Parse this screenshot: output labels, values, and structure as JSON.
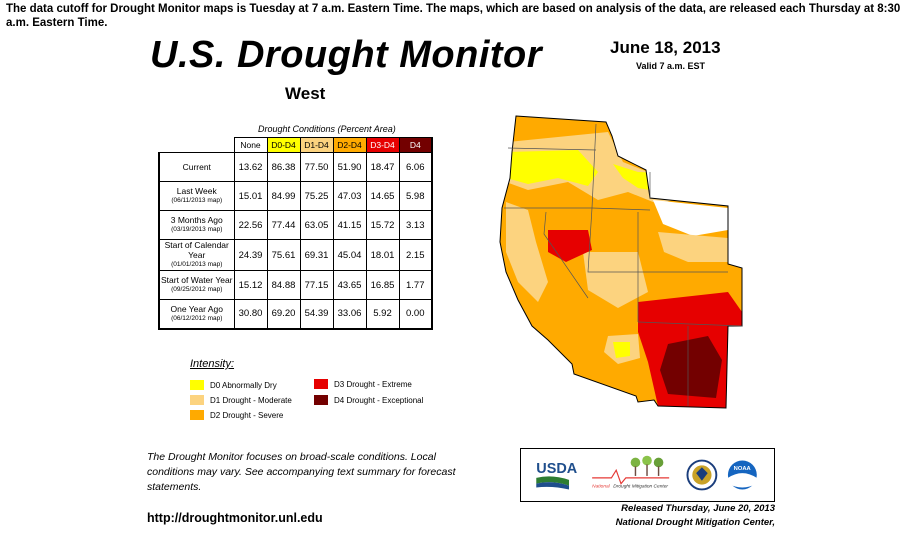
{
  "notice": "The data cutoff for Drought Monitor maps is Tuesday at 7 a.m. Eastern Time. The maps, which are based on analysis of the data, are released each Thursday at 8:30 a.m. Eastern Time.",
  "title": "U.S. Drought Monitor",
  "region": "West",
  "date": "June 18, 2013",
  "valid": "Valid 7 a.m. EST",
  "table": {
    "caption": "Drought Conditions (Percent Area)",
    "headers": [
      "None",
      "D0-D4",
      "D1-D4",
      "D2-D4",
      "D3-D4",
      "D4"
    ],
    "header_colors": [
      "#ffffff",
      "#ffff00",
      "#fcd37f",
      "#ffaa00",
      "#e60000",
      "#730000"
    ],
    "header_text_colors": [
      "#000000",
      "#000000",
      "#000000",
      "#000000",
      "#ffffff",
      "#ffffff"
    ],
    "rows": [
      {
        "label": "Current",
        "sub": "",
        "values": [
          "13.62",
          "86.38",
          "77.50",
          "51.90",
          "18.47",
          "6.06"
        ]
      },
      {
        "label": "Last Week",
        "sub": "(06/11/2013 map)",
        "values": [
          "15.01",
          "84.99",
          "75.25",
          "47.03",
          "14.65",
          "5.98"
        ]
      },
      {
        "label": "3 Months Ago",
        "sub": "(03/19/2013 map)",
        "values": [
          "22.56",
          "77.44",
          "63.05",
          "41.15",
          "15.72",
          "3.13"
        ]
      },
      {
        "label": "Start of Calendar Year",
        "sub": "(01/01/2013 map)",
        "values": [
          "24.39",
          "75.61",
          "69.31",
          "45.04",
          "18.01",
          "2.15"
        ]
      },
      {
        "label": "Start of Water Year",
        "sub": "(09/25/2012 map)",
        "values": [
          "15.12",
          "84.88",
          "77.15",
          "43.65",
          "16.85",
          "1.77"
        ]
      },
      {
        "label": "One Year Ago",
        "sub": "(06/12/2012 map)",
        "values": [
          "30.80",
          "69.20",
          "54.39",
          "33.06",
          "5.92",
          "0.00"
        ]
      }
    ]
  },
  "legend": {
    "title": "Intensity:",
    "items": [
      {
        "label": "D0 Abnormally Dry",
        "color": "#ffff00"
      },
      {
        "label": "D1 Drought - Moderate",
        "color": "#fcd37f"
      },
      {
        "label": "D2 Drought - Severe",
        "color": "#ffaa00"
      },
      {
        "label": "D3 Drought - Extreme",
        "color": "#e60000"
      },
      {
        "label": "D4 Drought - Exceptional",
        "color": "#730000"
      }
    ]
  },
  "note": "The Drought Monitor focuses on broad-scale conditions. Local conditions may vary. See accompanying text summary for forecast statements.",
  "url": "http://droughtmonitor.unl.edu",
  "logos": {
    "usda": "USDA",
    "ndmc_line1": "National",
    "ndmc_line2": "Drought Mitigation Center",
    "noaa": "NOAA"
  },
  "released_line1": "Released Thursday, June 20, 2013",
  "released_line2": "National Drought Mitigation Center,"
}
